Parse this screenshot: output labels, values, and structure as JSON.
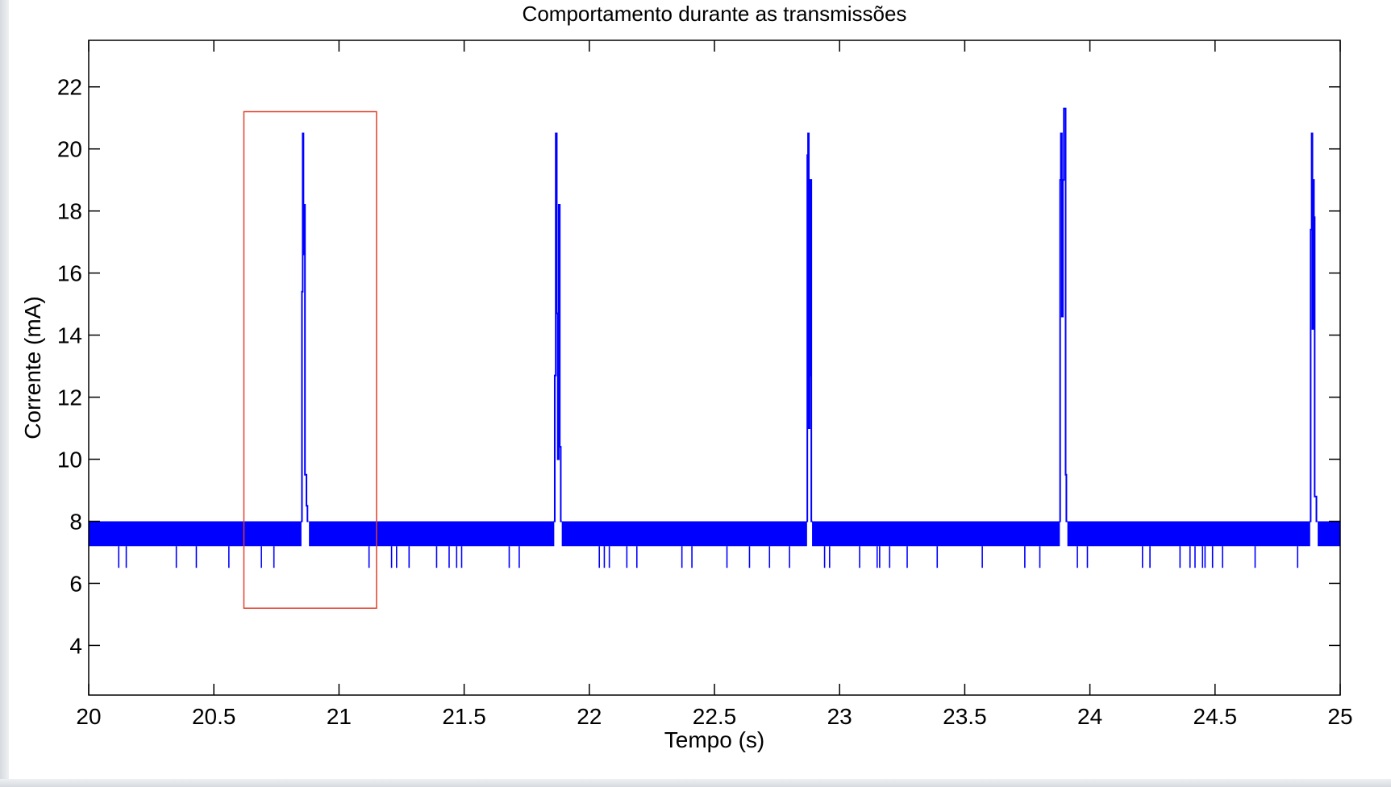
{
  "chart_data": {
    "type": "line",
    "title": "Comportamento durante as transmissões",
    "xlabel": "Tempo (s)",
    "ylabel": "Corrente (mA)",
    "xlim": [
      20,
      25
    ],
    "ylim": [
      2.4,
      23.5
    ],
    "xticks": [
      20,
      20.5,
      21,
      21.5,
      22,
      22.5,
      23,
      23.5,
      24,
      24.5,
      25
    ],
    "xtick_labels": [
      "20",
      "20.5",
      "21",
      "21.5",
      "22",
      "22.5",
      "23",
      "23.5",
      "24",
      "24.5",
      "25"
    ],
    "yticks": [
      4,
      6,
      8,
      10,
      12,
      14,
      16,
      18,
      20,
      22
    ],
    "ytick_labels": [
      "4",
      "6",
      "8",
      "10",
      "12",
      "14",
      "16",
      "18",
      "20",
      "22"
    ],
    "grid": false,
    "series_color": "#0000ff",
    "baseline": {
      "low": 7.2,
      "high": 8.0,
      "segments": [
        [
          20.0,
          20.85
        ],
        [
          20.88,
          21.86
        ],
        [
          21.89,
          22.87
        ],
        [
          22.89,
          23.88
        ],
        [
          23.91,
          24.88
        ],
        [
          24.91,
          25.0
        ]
      ]
    },
    "dips": {
      "value": 6.5,
      "x": [
        20.12,
        20.15,
        20.35,
        20.43,
        20.56,
        20.69,
        20.74,
        21.12,
        21.21,
        21.23,
        21.28,
        21.39,
        21.44,
        21.47,
        21.49,
        21.68,
        21.72,
        22.04,
        22.06,
        22.08,
        22.15,
        22.19,
        22.37,
        22.41,
        22.55,
        22.64,
        22.72,
        22.8,
        22.94,
        22.96,
        23.08,
        23.15,
        23.16,
        23.2,
        23.27,
        23.39,
        23.57,
        23.74,
        23.8,
        23.95,
        23.99,
        24.21,
        24.24,
        24.36,
        24.4,
        24.42,
        24.45,
        24.46,
        24.49,
        24.53,
        24.66,
        24.83
      ]
    },
    "bursts": [
      {
        "x": [
          20.848,
          20.852,
          20.855,
          20.858,
          20.861,
          20.864,
          20.867,
          20.87,
          20.874,
          20.878
        ],
        "y": [
          8.0,
          15.4,
          20.5,
          16.6,
          18.2,
          9.5,
          9.5,
          8.5,
          8.0,
          8.0
        ]
      },
      {
        "x": [
          21.858,
          21.862,
          21.866,
          21.87,
          21.874,
          21.878,
          21.882,
          21.886,
          21.89
        ],
        "y": [
          8.0,
          12.7,
          20.5,
          14.7,
          10.0,
          18.2,
          10.4,
          8.0,
          8.0
        ]
      },
      {
        "x": [
          22.868,
          22.871,
          22.874,
          22.877,
          22.88,
          22.883,
          22.887,
          22.891
        ],
        "y": [
          8.0,
          19.8,
          20.5,
          11.0,
          12.7,
          19.0,
          8.0,
          8.0
        ]
      },
      {
        "x": [
          23.878,
          23.881,
          23.884,
          23.888,
          23.892,
          23.896,
          23.9,
          23.903,
          23.906,
          23.91
        ],
        "y": [
          8.0,
          19.0,
          20.5,
          14.6,
          19.0,
          21.3,
          21.3,
          9.5,
          8.0,
          8.0
        ]
      },
      {
        "x": [
          24.878,
          24.882,
          24.886,
          24.889,
          24.892,
          24.895,
          24.898,
          24.901,
          24.905,
          24.909
        ],
        "y": [
          8.0,
          17.4,
          20.5,
          14.2,
          19.0,
          17.8,
          8.8,
          8.8,
          8.0,
          8.0
        ]
      }
    ],
    "highlight": {
      "x0": 20.62,
      "x1": 21.15,
      "y0": 5.2,
      "y1": 21.2,
      "color": "#e0402a"
    }
  }
}
